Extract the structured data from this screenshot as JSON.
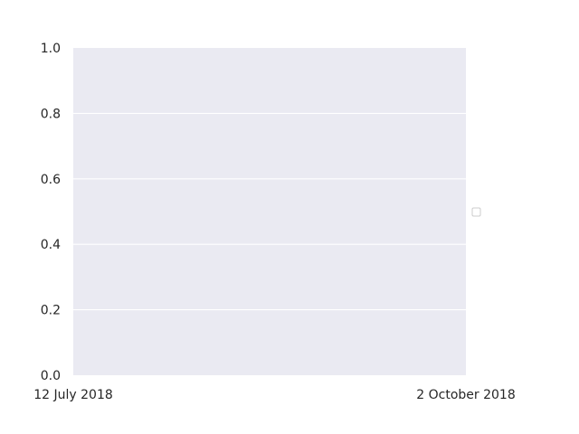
{
  "chart_data": {
    "type": "line",
    "title": "",
    "xlabel": "",
    "ylabel": "",
    "x": [],
    "series": [],
    "xlim": [
      "2018-07-12",
      "2018-10-02"
    ],
    "ylim": [
      0,
      1
    ],
    "x_ticks": [
      {
        "value": "2018-07-12",
        "label": "12 July 2018"
      },
      {
        "value": "2018-10-02",
        "label": "2 October 2018"
      }
    ],
    "y_ticks": [
      {
        "value": 0.0,
        "label": "0.0"
      },
      {
        "value": 0.2,
        "label": "0.2"
      },
      {
        "value": 0.4,
        "label": "0.4"
      },
      {
        "value": 0.6,
        "label": "0.6"
      },
      {
        "value": 0.8,
        "label": "0.8"
      },
      {
        "value": 1.0,
        "label": "1.0"
      }
    ],
    "grid": true,
    "grid_axis": "y",
    "legend": {
      "placement": "outside-right",
      "entries": []
    },
    "colors": {
      "plot_background": "#eaeaf2",
      "grid": "#ffffff",
      "text": "#262626",
      "legend_edge": "#cccccc"
    }
  }
}
